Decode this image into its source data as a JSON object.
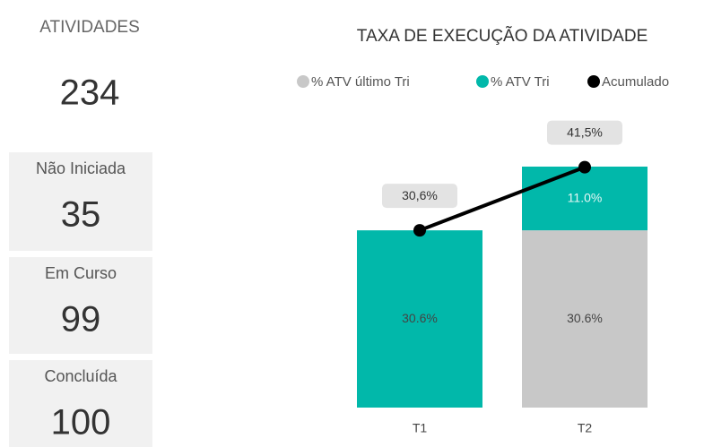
{
  "kpi": {
    "title": "ATIVIDADES",
    "value": 234
  },
  "cards": [
    {
      "label": "Não Iniciada",
      "value": 35
    },
    {
      "label": "Em Curso",
      "value": 99
    },
    {
      "label": "Concluída",
      "value": 100
    }
  ],
  "chart_data": {
    "type": "bar",
    "stacked": true,
    "title": "TAXA DE EXECUÇÃO DA ATIVIDADE",
    "categories": [
      "T1",
      "T2"
    ],
    "ylim": [
      0,
      45
    ],
    "series": [
      {
        "name": "% ATV último Tri",
        "color": "#c8c8c8",
        "type": "bar",
        "values": [
          null,
          30.6
        ],
        "value_labels": [
          null,
          "30.6%"
        ]
      },
      {
        "name": "% ATV Tri",
        "color": "#01b8aa",
        "type": "bar",
        "values": [
          30.6,
          11.0
        ],
        "value_labels": [
          "30.6%",
          "11.0%"
        ]
      },
      {
        "name": "Acumulado",
        "color": "#000000",
        "type": "line",
        "values": [
          30.6,
          41.5
        ],
        "value_labels": [
          "30,6%",
          "41,5%"
        ]
      }
    ]
  }
}
